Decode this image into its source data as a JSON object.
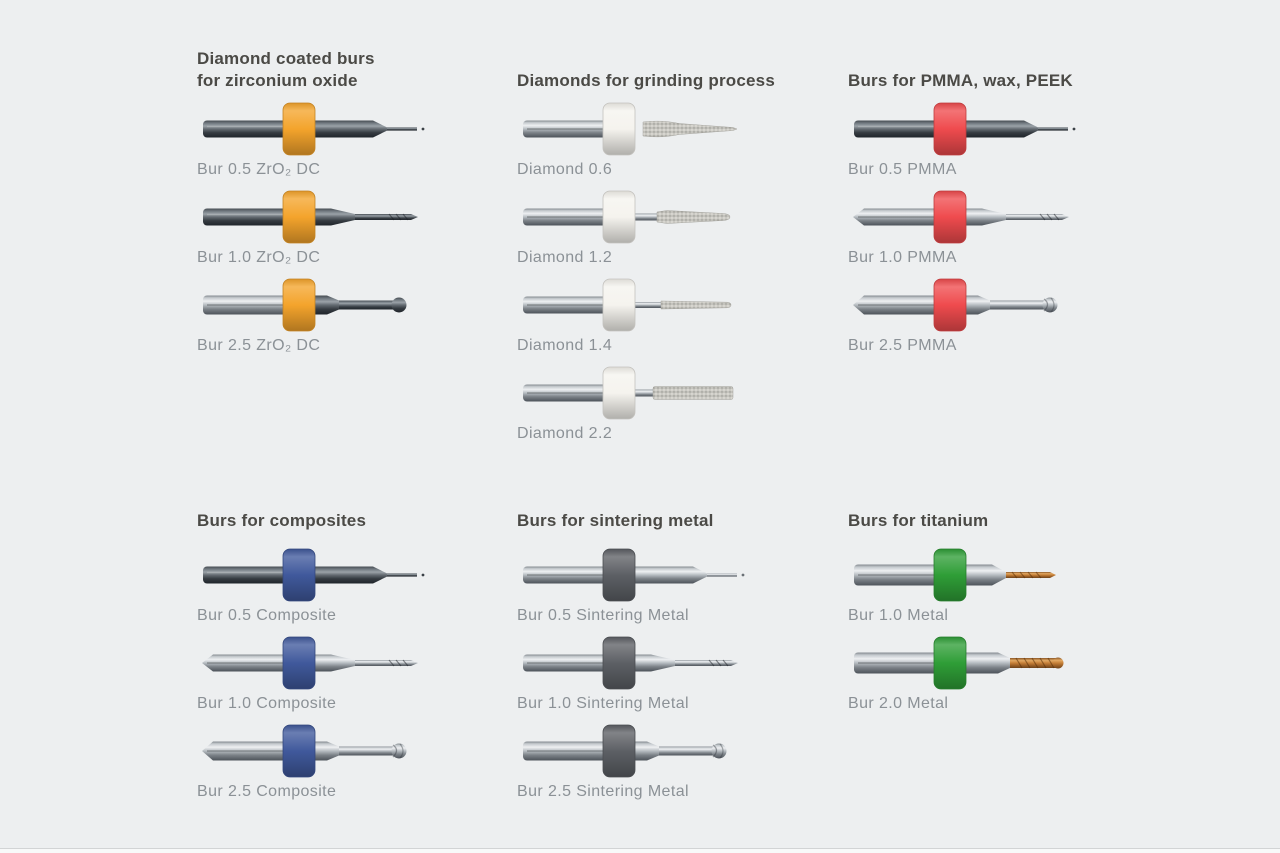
{
  "page": {
    "background": "#edeff0"
  },
  "sections": [
    {
      "columns": [
        {
          "title_lines": [
            "Diamond coated burs",
            "for zirconium oxide"
          ],
          "ring_color": "#f4a42c",
          "items": [
            {
              "label": "Bur 0.5 ZrO₂ DC",
              "variant": "fine-0.5",
              "shaft": "dark",
              "tip": "dark",
              "left_end": "round"
            },
            {
              "label": "Bur 1.0 ZrO₂ DC",
              "variant": "taper-1.0",
              "shaft": "dark",
              "tip": "dark",
              "left_end": "round"
            },
            {
              "label": "Bur 2.5 ZrO₂ DC",
              "variant": "ball-2.5",
              "shaft": "silver",
              "tip": "dark",
              "left_end": "round"
            }
          ]
        },
        {
          "title_lines": [
            "Diamonds for grinding process"
          ],
          "ring_color": "#f5f3ee",
          "items": [
            {
              "label": "Diamond 0.6",
              "variant": "diamond-0.6",
              "shaft": "silver",
              "tip": "grit",
              "left_end": "round"
            },
            {
              "label": "Diamond 1.2",
              "variant": "diamond-1.2",
              "shaft": "silver",
              "tip": "grit",
              "left_end": "round"
            },
            {
              "label": "Diamond 1.4",
              "variant": "diamond-1.4",
              "shaft": "silver",
              "tip": "grit",
              "left_end": "round"
            },
            {
              "label": "Diamond 2.2",
              "variant": "diamond-2.2",
              "shaft": "silver",
              "tip": "grit",
              "left_end": "round"
            }
          ]
        },
        {
          "title_lines": [
            "Burs for PMMA, wax, PEEK"
          ],
          "ring_color": "#ef4b4e",
          "items": [
            {
              "label": "Bur 0.5 PMMA",
              "variant": "fine-0.5",
              "shaft": "dark",
              "tip": "dark",
              "left_end": "round"
            },
            {
              "label": "Bur 1.0 PMMA",
              "variant": "taper-1.0",
              "shaft": "silver",
              "tip": "silver",
              "left_end": "pointed"
            },
            {
              "label": "Bur 2.5 PMMA",
              "variant": "ball-2.5",
              "shaft": "silver",
              "tip": "silver",
              "left_end": "pointed"
            }
          ]
        }
      ]
    },
    {
      "columns": [
        {
          "title_lines": [
            "Burs for composites"
          ],
          "ring_color": "#40599c",
          "items": [
            {
              "label": "Bur 0.5 Composite",
              "variant": "fine-0.5",
              "shaft": "dark",
              "tip": "dark",
              "left_end": "round"
            },
            {
              "label": "Bur 1.0 Composite",
              "variant": "taper-1.0",
              "shaft": "silver",
              "tip": "silver",
              "left_end": "pointed"
            },
            {
              "label": "Bur 2.5 Composite",
              "variant": "ball-2.5",
              "shaft": "silver",
              "tip": "silver",
              "left_end": "pointed"
            }
          ]
        },
        {
          "title_lines": [
            "Burs for sintering metal"
          ],
          "ring_color": "#5d6065",
          "items": [
            {
              "label": "Bur 0.5 Sintering Metal",
              "variant": "fine-0.5",
              "shaft": "silver",
              "tip": "silver",
              "left_end": "round"
            },
            {
              "label": "Bur 1.0 Sintering Metal",
              "variant": "taper-1.0",
              "shaft": "silver",
              "tip": "silver",
              "left_end": "round"
            },
            {
              "label": "Bur 2.5 Sintering Metal",
              "variant": "ball-2.5",
              "shaft": "silver",
              "tip": "silver",
              "left_end": "round"
            }
          ]
        },
        {
          "title_lines": [
            "Burs for titanium"
          ],
          "ring_color": "#2f9e37",
          "items": [
            {
              "label": "Bur 1.0 Metal",
              "variant": "copper-1.0",
              "shaft": "silver",
              "tip": "copper",
              "left_end": "round"
            },
            {
              "label": "Bur 2.0 Metal",
              "variant": "copper-2.0",
              "shaft": "silver",
              "tip": "copper",
              "left_end": "round"
            }
          ]
        }
      ]
    }
  ]
}
